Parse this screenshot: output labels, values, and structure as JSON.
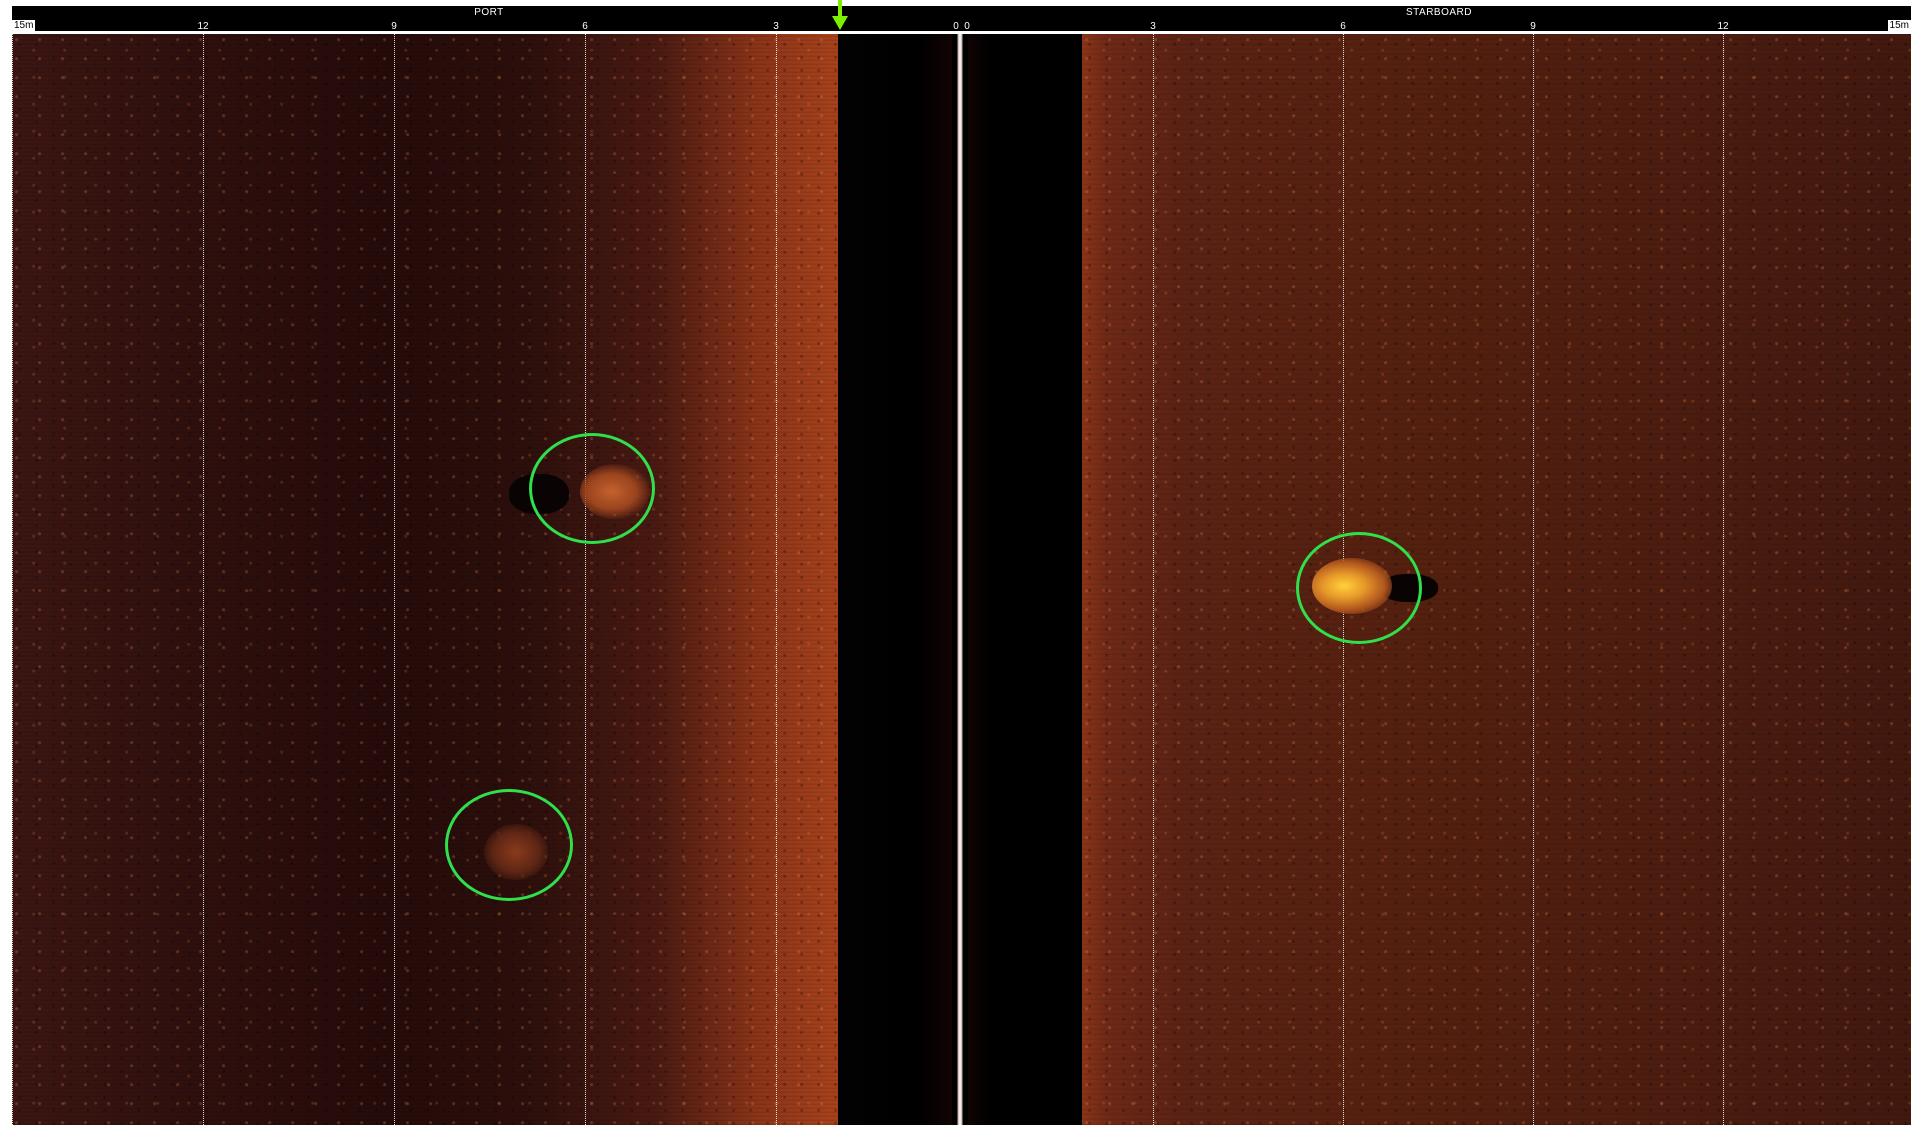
{
  "ruler": {
    "port_label": "PORT",
    "starboard_label": "STARBOARD",
    "range_left": "15m",
    "range_right": "15m",
    "port_ticks": [
      "12",
      "9",
      "6",
      "3",
      "0"
    ],
    "starboard_ticks": [
      "0",
      "3",
      "6",
      "9",
      "12"
    ]
  },
  "colors": {
    "ring": "#2fe04a",
    "nadir_marker": "#7cf000",
    "seabed_dark": "#250b0a",
    "seabed_bright": "#a8421c",
    "water_column": "#000000"
  },
  "targets": [
    {
      "name": "port-target-upper",
      "side": "port",
      "range_m": 6,
      "note": ""
    },
    {
      "name": "port-target-lower",
      "side": "port",
      "range_m": 8,
      "note": ""
    },
    {
      "name": "starboard-target",
      "side": "starboard",
      "range_m": 6,
      "note": ""
    }
  ],
  "icons": {
    "nadir": "down-arrow-icon"
  }
}
